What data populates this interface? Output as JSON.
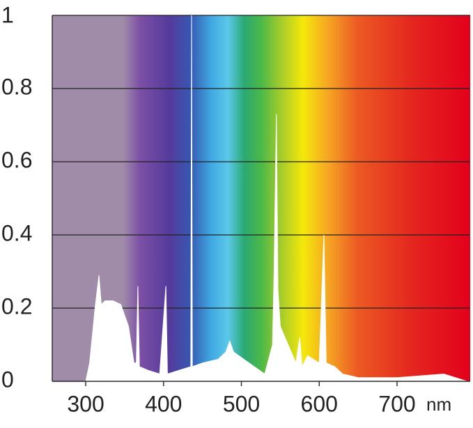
{
  "chart_data": {
    "type": "area",
    "x": [
      290,
      300,
      305,
      312,
      317,
      320,
      325,
      335,
      345,
      355,
      362,
      365,
      367,
      369,
      380,
      395,
      403,
      405,
      420,
      435,
      436,
      437,
      450,
      470,
      480,
      485,
      490,
      510,
      530,
      540,
      542,
      545,
      547,
      550,
      560,
      570,
      575,
      578,
      585,
      600,
      606,
      609,
      620,
      630,
      650,
      680,
      700,
      760,
      790
    ],
    "values": [
      0,
      0,
      0.05,
      0.2,
      0.29,
      0.21,
      0.22,
      0.22,
      0.21,
      0.15,
      0.05,
      0.05,
      0.26,
      0.04,
      0.03,
      0.02,
      0.26,
      0.02,
      0.03,
      0.04,
      1.0,
      0.04,
      0.05,
      0.06,
      0.08,
      0.11,
      0.08,
      0.05,
      0.02,
      0.1,
      0.3,
      0.73,
      0.25,
      0.15,
      0.1,
      0.05,
      0.12,
      0.04,
      0.07,
      0.05,
      0.4,
      0.05,
      0.04,
      0.02,
      0.01,
      0.01,
      0.01,
      0.02,
      0
    ],
    "color": "#ffffff",
    "x_label": "nm",
    "xlim": [
      257,
      794
    ],
    "xticks": [
      300,
      400,
      500,
      600,
      700
    ],
    "ylim": [
      0,
      1
    ],
    "yticks": [
      0,
      0.2,
      0.4,
      0.6,
      0.8,
      1
    ],
    "grid": true
  }
}
